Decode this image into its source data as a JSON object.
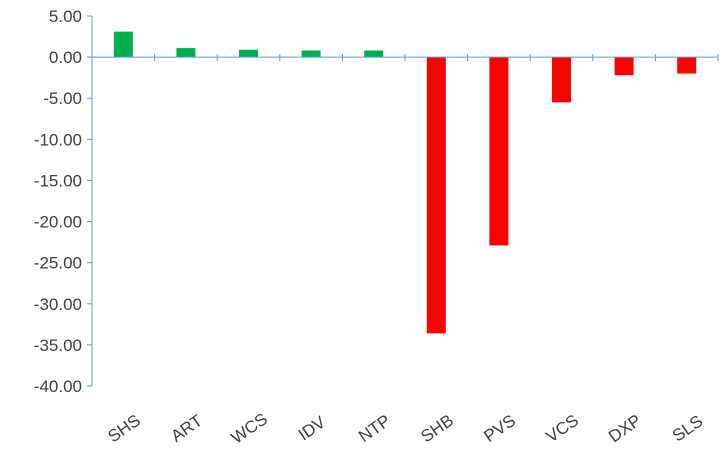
{
  "chart_data": {
    "type": "bar",
    "title": "",
    "xlabel": "",
    "ylabel": "",
    "categories": [
      "SHS",
      "ART",
      "WCS",
      "IDV",
      "NTP",
      "SHB",
      "PVS",
      "VCS",
      "DXP",
      "SLS"
    ],
    "values": [
      3.1,
      1.1,
      0.9,
      0.8,
      0.8,
      -33.6,
      -22.9,
      -5.5,
      -2.2,
      -2.0
    ],
    "ylim": [
      -40,
      5
    ],
    "yticks": [
      "5.00",
      "0.00",
      "-5.00",
      "-10.00",
      "-15.00",
      "-20.00",
      "-25.00",
      "-30.00",
      "-35.00",
      "-40.00"
    ],
    "grid": false,
    "legend": "none",
    "colors": {
      "positive": "#00b050",
      "negative": "#ff0000",
      "axis": "#5b9bd5",
      "text": "#404040"
    }
  }
}
